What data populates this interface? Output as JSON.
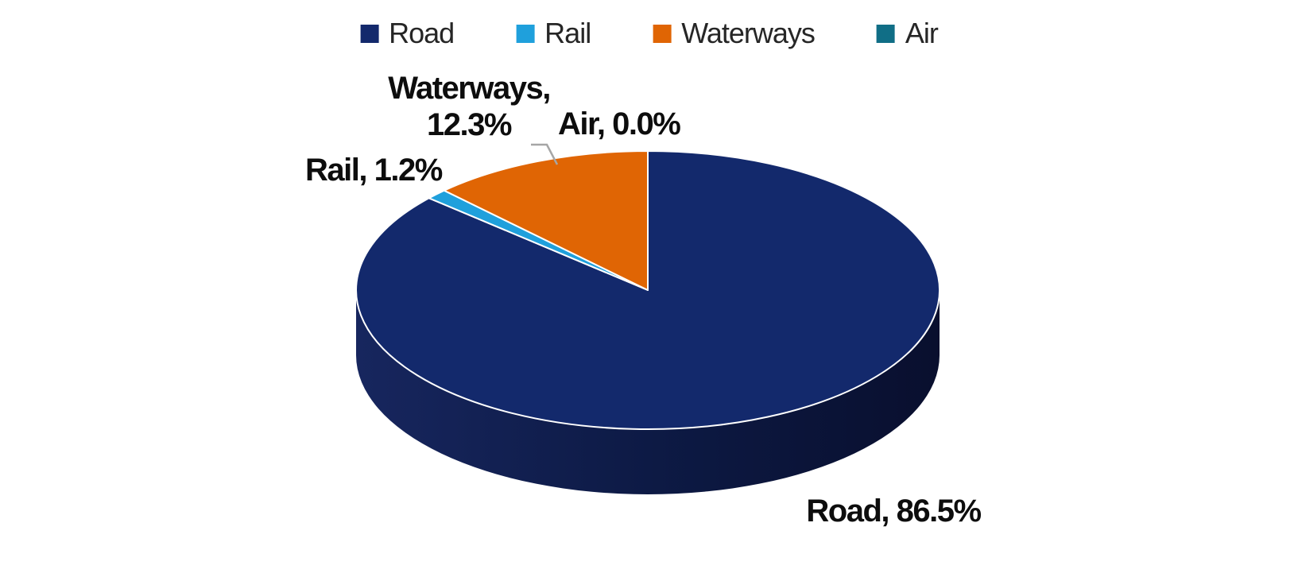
{
  "chart_data": {
    "type": "pie",
    "style": "3d-pie",
    "title": "",
    "categories": [
      "Road",
      "Rail",
      "Waterways",
      "Air"
    ],
    "values": [
      86.5,
      1.2,
      12.3,
      0.0
    ],
    "unit": "%",
    "colors": [
      "#13296C",
      "#1FA0DC",
      "#E06504",
      "#106E86"
    ],
    "legend_position": "top",
    "start_angle_deg": 0,
    "direction": "clockwise",
    "slice_border_color": "#FFFFFF",
    "leader_line_color": "#A6A6A6",
    "data_labels": {
      "road": "Road, 86.5%",
      "rail": "Rail, 1.2%",
      "waterways_line1": "Waterways,",
      "waterways_line2": "12.3%",
      "air": "Air, 0.0%"
    }
  },
  "legend": {
    "items": [
      {
        "id": "road",
        "label": "Road",
        "color": "#13296C"
      },
      {
        "id": "rail",
        "label": "Rail",
        "color": "#1FA0DC"
      },
      {
        "id": "waterways",
        "label": "Waterways",
        "color": "#E06504"
      },
      {
        "id": "air",
        "label": "Air",
        "color": "#106E86"
      }
    ]
  }
}
